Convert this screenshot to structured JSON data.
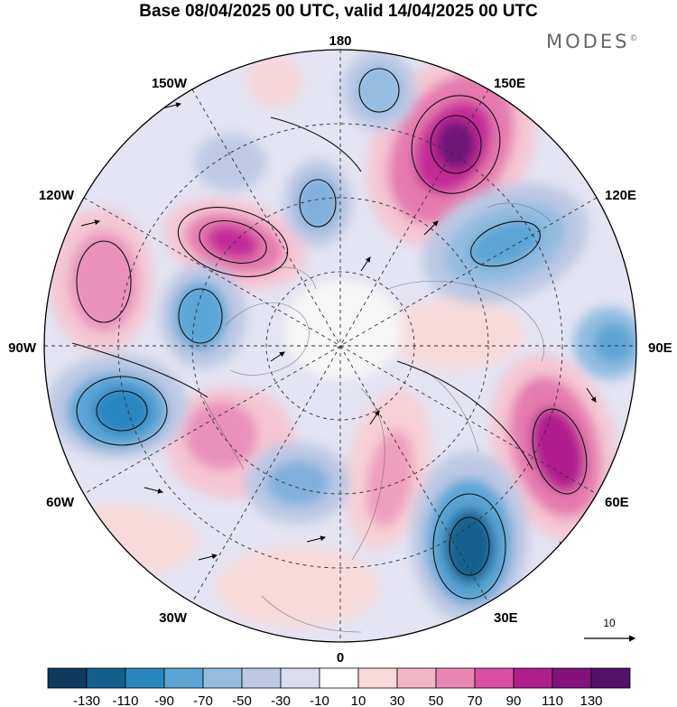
{
  "title": "Base 08/04/2025 00 UTC, valid 14/04/2025 00 UTC",
  "brand": {
    "text": "MODES",
    "mark": "©"
  },
  "longitude_labels": {
    "top": "180",
    "bottom": "0",
    "left": "90W",
    "right": "90E",
    "upper_left": "150W",
    "upper_right": "150E",
    "left_upper": "120W",
    "right_upper": "120E",
    "left_lower": "60W",
    "right_lower": "60E",
    "lower_left": "30W",
    "lower_right": "30E"
  },
  "vector_reference": {
    "value": "10"
  },
  "colorbar": {
    "ticks": [
      "-130",
      "-110",
      "-90",
      "-70",
      "-50",
      "-30",
      "-10",
      "10",
      "30",
      "50",
      "70",
      "90",
      "110",
      "130"
    ],
    "colors": [
      "#0d3a5e",
      "#13608f",
      "#2a86c0",
      "#5aa5d5",
      "#93bce0",
      "#bcc8e4",
      "#dcdcf0",
      "#ffffff",
      "#f8dada",
      "#f2b6c6",
      "#ea86b3",
      "#dc4ea6",
      "#b01e8e",
      "#84117e",
      "#55106a"
    ]
  }
}
